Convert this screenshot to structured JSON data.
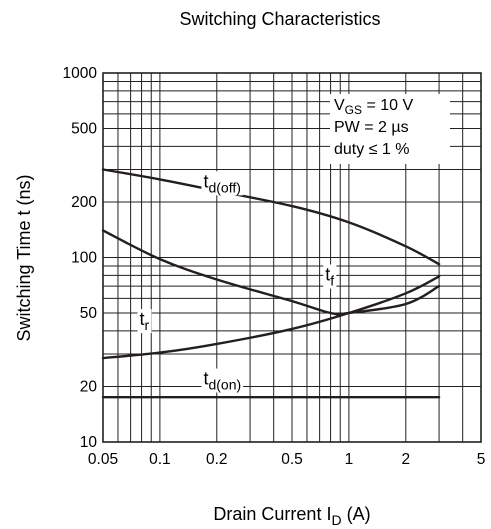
{
  "chart_data": {
    "type": "line",
    "title": "Switching Characteristics",
    "xlabel": {
      "main": "Drain Current  I",
      "sub": "D",
      "unit": "  (A)"
    },
    "ylabel": "Switching Time  t  (ns)",
    "x_scale": "log",
    "y_scale": "log",
    "xlim": [
      0.05,
      5
    ],
    "ylim": [
      10,
      1000
    ],
    "grid": true,
    "x_ticks": [
      {
        "v": 0.05,
        "label": "0.05"
      },
      {
        "v": 0.1,
        "label": "0.1"
      },
      {
        "v": 0.2,
        "label": "0.2"
      },
      {
        "v": 0.5,
        "label": "0.5"
      },
      {
        "v": 1,
        "label": "1"
      },
      {
        "v": 2,
        "label": "2"
      },
      {
        "v": 5,
        "label": "5"
      }
    ],
    "y_ticks": [
      {
        "v": 10,
        "label": "10"
      },
      {
        "v": 20,
        "label": "20"
      },
      {
        "v": 50,
        "label": "50"
      },
      {
        "v": 100,
        "label": "100"
      },
      {
        "v": 200,
        "label": "200"
      },
      {
        "v": 500,
        "label": "500"
      },
      {
        "v": 1000,
        "label": "1000"
      }
    ],
    "conditions": [
      {
        "main": "V",
        "sub": "GS",
        "rest": " = 10 V"
      },
      {
        "main": "PW = 2 µs",
        "sub": "",
        "rest": ""
      },
      {
        "main": "duty ≤ 1 %",
        "sub": "",
        "rest": ""
      }
    ],
    "series": [
      {
        "label": "t",
        "sub": "d(off)",
        "label_at": [
          0.17,
          240
        ],
        "points": [
          [
            0.05,
            300
          ],
          [
            0.1,
            265
          ],
          [
            0.2,
            230
          ],
          [
            0.5,
            190
          ],
          [
            1,
            155
          ],
          [
            2,
            115
          ],
          [
            3,
            92
          ]
        ]
      },
      {
        "label": "t",
        "sub": "f",
        "label_at": [
          0.75,
          75
        ],
        "points": [
          [
            0.05,
            140
          ],
          [
            0.1,
            98
          ],
          [
            0.2,
            76
          ],
          [
            0.5,
            58
          ],
          [
            0.8,
            50
          ],
          [
            1,
            50
          ],
          [
            2,
            56
          ],
          [
            3,
            70
          ]
        ]
      },
      {
        "label": "t",
        "sub": "r",
        "label_at": [
          0.078,
          43
        ],
        "points": [
          [
            0.05,
            28.5
          ],
          [
            0.1,
            30.5
          ],
          [
            0.2,
            34
          ],
          [
            0.5,
            41
          ],
          [
            1,
            50
          ],
          [
            2,
            64
          ],
          [
            3,
            79
          ]
        ]
      },
      {
        "label": "t",
        "sub": "d(on)",
        "label_at": [
          0.17,
          20.5
        ],
        "points": [
          [
            0.05,
            17.5
          ],
          [
            3,
            17.5
          ]
        ]
      }
    ]
  }
}
